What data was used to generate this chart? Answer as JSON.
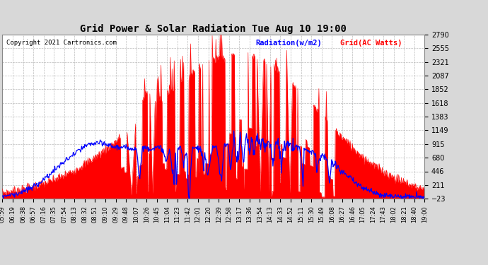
{
  "title": "Grid Power & Solar Radiation Tue Aug 10 19:00",
  "copyright": "Copyright 2021 Cartronics.com",
  "legend_radiation": "Radiation(w/m2)",
  "legend_grid": "Grid(AC Watts)",
  "background_color": "#d8d8d8",
  "plot_bg_color": "#ffffff",
  "grid_color": "#aaaaaa",
  "radiation_color": "#ff0000",
  "grid_line_color": "#0000ff",
  "ymin": -23.0,
  "ymax": 2789.8,
  "yticks": [
    -23.0,
    211.4,
    445.8,
    680.2,
    914.6,
    1149.0,
    1383.4,
    1617.8,
    1852.2,
    2086.6,
    2321.0,
    2555.4,
    2789.8
  ],
  "x_labels": [
    "05:59",
    "06:19",
    "06:38",
    "06:57",
    "07:16",
    "07:35",
    "07:54",
    "08:13",
    "08:32",
    "08:51",
    "09:10",
    "09:29",
    "09:48",
    "10:07",
    "10:26",
    "10:45",
    "11:04",
    "11:23",
    "11:42",
    "12:01",
    "12:20",
    "12:39",
    "12:58",
    "13:17",
    "13:36",
    "13:54",
    "14:13",
    "14:33",
    "14:52",
    "15:11",
    "15:30",
    "15:49",
    "16:08",
    "16:27",
    "16:46",
    "17:05",
    "17:24",
    "17:43",
    "18:02",
    "18:21",
    "18:40",
    "19:00"
  ],
  "num_points": 800
}
